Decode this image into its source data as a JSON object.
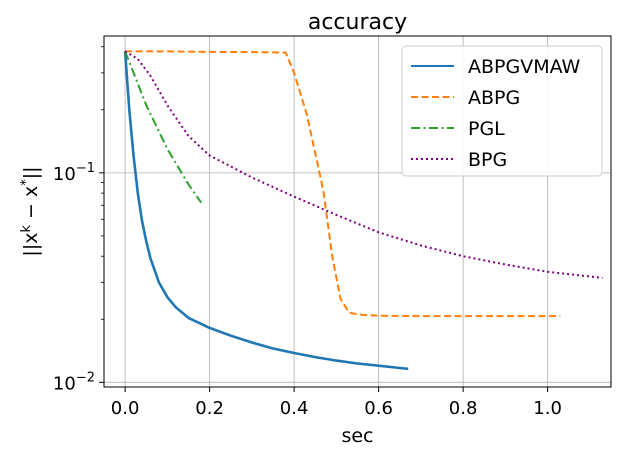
{
  "chart_data": {
    "type": "line",
    "title": "accuracy",
    "xlabel": "sec",
    "ylabel": "||x^k − x^*||",
    "yscale": "log",
    "xlim": [
      -0.05,
      1.15
    ],
    "ylim": [
      0.0095,
      0.45
    ],
    "x_ticks": [
      0.0,
      0.2,
      0.4,
      0.6,
      0.8,
      1.0
    ],
    "x_tick_labels": [
      "0.0",
      "0.2",
      "0.4",
      "0.6",
      "0.8",
      "1.0"
    ],
    "y_ticks": [
      0.01,
      0.1
    ],
    "y_tick_labels": [
      {
        "base": "10",
        "exp": "−2"
      },
      {
        "base": "10",
        "exp": "−1"
      }
    ],
    "grid": true,
    "legend": "top-right",
    "series": [
      {
        "name": "ABPGVMAW",
        "color": "#1f77b4",
        "style": "solid",
        "x": [
          0.0,
          0.01,
          0.02,
          0.03,
          0.04,
          0.05,
          0.06,
          0.08,
          0.1,
          0.12,
          0.15,
          0.2,
          0.25,
          0.3,
          0.35,
          0.4,
          0.45,
          0.5,
          0.55,
          0.6,
          0.65,
          0.67
        ],
        "y": [
          0.38,
          0.2,
          0.12,
          0.08,
          0.059,
          0.047,
          0.039,
          0.03,
          0.0255,
          0.0228,
          0.0203,
          0.0182,
          0.0167,
          0.0155,
          0.0145,
          0.0138,
          0.0132,
          0.0127,
          0.0123,
          0.012,
          0.0117,
          0.0116
        ]
      },
      {
        "name": "ABPG",
        "color": "#ff7f0e",
        "style": "dashed",
        "x": [
          0.0,
          0.1,
          0.2,
          0.3,
          0.38,
          0.4,
          0.43,
          0.46,
          0.47,
          0.49,
          0.51,
          0.53,
          0.56,
          0.6,
          0.7,
          0.8,
          0.9,
          1.03
        ],
        "y": [
          0.38,
          0.38,
          0.378,
          0.377,
          0.375,
          0.3,
          0.19,
          0.1,
          0.08,
          0.04,
          0.025,
          0.0215,
          0.021,
          0.0208,
          0.0207,
          0.0207,
          0.0207,
          0.0207
        ]
      },
      {
        "name": "PGL",
        "color": "#2ca02c",
        "style": "dashdot",
        "x": [
          0.0,
          0.02,
          0.05,
          0.1,
          0.15,
          0.18
        ],
        "y": [
          0.38,
          0.3,
          0.21,
          0.13,
          0.088,
          0.072
        ]
      },
      {
        "name": "BPG",
        "color": "#800080",
        "style": "dotted",
        "x": [
          0.0,
          0.03,
          0.06,
          0.1,
          0.15,
          0.2,
          0.3,
          0.4,
          0.5,
          0.6,
          0.7,
          0.8,
          0.9,
          1.0,
          1.13
        ],
        "y": [
          0.38,
          0.35,
          0.29,
          0.21,
          0.15,
          0.121,
          0.095,
          0.077,
          0.063,
          0.052,
          0.045,
          0.04,
          0.0365,
          0.0337,
          0.0315
        ]
      }
    ]
  }
}
